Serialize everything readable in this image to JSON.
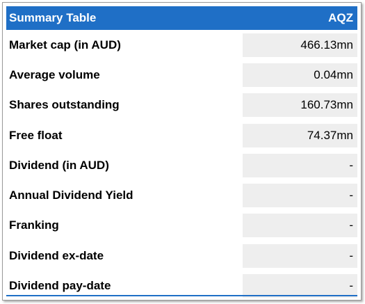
{
  "header": {
    "title": "Summary Table",
    "ticker": "AQZ"
  },
  "rows": [
    {
      "label": "Market cap (in AUD)",
      "value": "466.13mn"
    },
    {
      "label": "Average volume",
      "value": "0.04mn"
    },
    {
      "label": "Shares outstanding",
      "value": "160.73mn"
    },
    {
      "label": "Free float",
      "value": "74.37mn"
    },
    {
      "label": "Dividend (in AUD)",
      "value": "-"
    },
    {
      "label": "Annual Dividend Yield",
      "value": "-"
    },
    {
      "label": "Franking",
      "value": "-"
    },
    {
      "label": "Dividend ex-date",
      "value": "-"
    },
    {
      "label": "Dividend pay-date",
      "value": "-"
    }
  ]
}
